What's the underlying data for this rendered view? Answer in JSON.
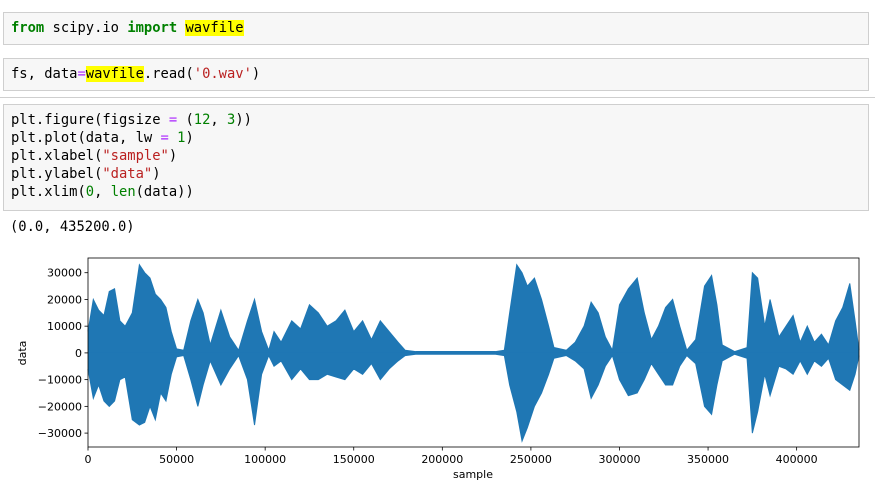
{
  "cells": [
    {
      "lines": [
        [
          "from",
          " scipy.io ",
          "import",
          " ",
          "wavfile"
        ]
      ]
    },
    {
      "lines": [
        [
          "fs, data",
          "=",
          "wavfile",
          ".read(",
          "'0.wav'",
          ")"
        ]
      ]
    },
    {
      "lines": [
        [
          "plt.figure(figsize ",
          "=",
          " (",
          "12",
          ", ",
          "3",
          "))"
        ],
        [
          "plt.plot(data, lw ",
          "=",
          " ",
          "1",
          ")"
        ],
        [
          "plt.xlabel(",
          "\"sample\"",
          ")"
        ],
        [
          "plt.ylabel(",
          "\"data\"",
          ")"
        ],
        [
          "plt.xlim(",
          "0",
          ", ",
          "len",
          "(data))"
        ]
      ],
      "output": "(0.0, 435200.0)"
    }
  ],
  "chart_data": {
    "type": "area",
    "xlabel": "sample",
    "ylabel": "data",
    "x": [
      0,
      3000,
      6000,
      9000,
      12000,
      15000,
      18000,
      21000,
      25000,
      29000,
      32000,
      35000,
      38000,
      41000,
      44000,
      47000,
      50000,
      54000,
      58000,
      62000,
      65000,
      69000,
      75000,
      80000,
      85000,
      90000,
      94000,
      98000,
      102000,
      105000,
      109000,
      115000,
      120000,
      125000,
      130000,
      135000,
      140000,
      145000,
      150000,
      155000,
      160000,
      165000,
      170000,
      175000,
      179000,
      185000,
      200000,
      215000,
      230000,
      235000,
      238000,
      242000,
      245000,
      248000,
      252000,
      256000,
      260000,
      263000,
      270000,
      275000,
      280000,
      284000,
      288000,
      292000,
      296000,
      300000,
      305000,
      310000,
      314000,
      318000,
      322000,
      326000,
      330000,
      334000,
      338000,
      343000,
      348000,
      352000,
      355000,
      358000,
      365000,
      372000,
      375000,
      378000,
      382000,
      385000,
      390000,
      394000,
      398000,
      402000,
      406000,
      410000,
      414000,
      418000,
      422000,
      426000,
      430000,
      433000,
      435200
    ],
    "series": [
      {
        "color": "#1f77b4",
        "values": [
          8000,
          20000,
          16000,
          14000,
          23000,
          24000,
          12000,
          10000,
          15000,
          33000,
          30000,
          28000,
          22000,
          20000,
          17000,
          8000,
          1500,
          1000,
          12000,
          20000,
          15000,
          3000,
          16000,
          6000,
          1000,
          12000,
          20000,
          8000,
          1000,
          8000,
          4000,
          12000,
          9000,
          18000,
          15000,
          10000,
          12000,
          16000,
          8000,
          12000,
          5000,
          12000,
          8000,
          4000,
          1000,
          500,
          500,
          500,
          500,
          1000,
          15000,
          33000,
          30000,
          25000,
          28000,
          20000,
          10000,
          2000,
          1000,
          4000,
          10000,
          19000,
          15000,
          6000,
          1000,
          18000,
          24000,
          28000,
          15000,
          5000,
          10000,
          17000,
          20000,
          10000,
          1000,
          5000,
          25000,
          29000,
          18000,
          3000,
          500,
          2000,
          30000,
          28000,
          10000,
          20000,
          6000,
          10000,
          14000,
          4000,
          10000,
          4000,
          7000,
          3000,
          12000,
          17000,
          26000,
          12000,
          1000
        ]
      },
      {
        "color": "#1f77b4",
        "values": [
          -6000,
          -17000,
          -12000,
          -18000,
          -20000,
          -18000,
          -10000,
          -9000,
          -25000,
          -27000,
          -26000,
          -20000,
          -25000,
          -15000,
          -18000,
          -8000,
          -1500,
          -1000,
          -10000,
          -20000,
          -12000,
          -3000,
          -12000,
          -6000,
          -1000,
          -10000,
          -27000,
          -8000,
          -1000,
          -5000,
          -3000,
          -10000,
          -6000,
          -10000,
          -10000,
          -8000,
          -9000,
          -10000,
          -6000,
          -8000,
          -4000,
          -10000,
          -6000,
          -3000,
          -1000,
          -500,
          -500,
          -500,
          -500,
          -1000,
          -12000,
          -22000,
          -33000,
          -28000,
          -20000,
          -15000,
          -8000,
          -2000,
          -1000,
          -3000,
          -6000,
          -17000,
          -12000,
          -5000,
          -1000,
          -10000,
          -16000,
          -15000,
          -10000,
          -4000,
          -8000,
          -12000,
          -12000,
          -5000,
          -1000,
          -4000,
          -20000,
          -23000,
          -12000,
          -3000,
          -500,
          -2000,
          -30000,
          -22000,
          -8000,
          -16000,
          -5000,
          -6000,
          -8000,
          -3000,
          -8000,
          -3000,
          -5000,
          -2000,
          -10000,
          -12000,
          -14000,
          -8000,
          -1000
        ]
      }
    ],
    "xlim": [
      0,
      435200
    ],
    "xticks": [
      0,
      50000,
      100000,
      150000,
      200000,
      250000,
      300000,
      350000,
      400000
    ],
    "ylim": [
      -35200,
      35500
    ],
    "yticks": [
      {
        "value": -30000,
        "label": "−30000"
      },
      {
        "value": -20000,
        "label": "−20000"
      },
      {
        "value": -10000,
        "label": "−10000"
      },
      0,
      10000,
      20000,
      30000
    ],
    "grid": false
  }
}
